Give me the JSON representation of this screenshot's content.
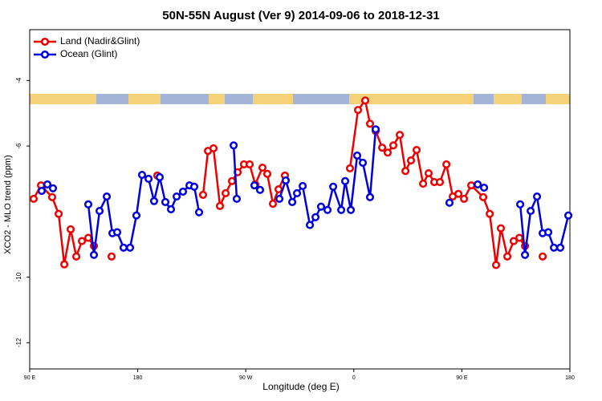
{
  "chart_data": {
    "type": "line",
    "title": "50N-55N August (Ver 9)   2014-09-06 to 2018-12-31",
    "x_label": "Longitude (deg E)",
    "y_label": "XCO2 - MLO trend (ppm)",
    "xlim": [
      90,
      540
    ],
    "xticks": [
      {
        "value": 90,
        "label": "90 E"
      },
      {
        "value": 180,
        "label": "180"
      },
      {
        "value": 270,
        "label": "90 W"
      },
      {
        "value": 360,
        "label": "0"
      },
      {
        "value": 450,
        "label": "90 E"
      },
      {
        "value": 540,
        "label": "180"
      }
    ],
    "ylim": [
      -12.8,
      -2.45
    ],
    "yticks": [
      -4,
      -6,
      -10,
      -12
    ],
    "legend": "upper left",
    "series": [
      {
        "name": "Land (Nadir&Glint)",
        "color": "#ee0000",
        "x": [
          93.3,
          99.4,
          108.7,
          114.1,
          118.8,
          124.1,
          128.8,
          133.5,
          138.8,
          143.5,
          150.9,
          158.2,
          177.6,
          196.3,
          215.7,
          234.4,
          238.5,
          243.1,
          248.5,
          253.2,
          258.5,
          263.2,
          268.5,
          273.2,
          277.9,
          283.9,
          287.9,
          292.6,
          297.3,
          302.6,
          329.4,
          356.8,
          363.5,
          369.5,
          373.5,
          378.2,
          383.6,
          388.2,
          392.9,
          398.3,
          403.0,
          407.6,
          412.3,
          417.7,
          422.3,
          427.0,
          431.7,
          437.1,
          442.4,
          447.1,
          451.8,
          457.8,
          467.8,
          473.2,
          478.5,
          482.5,
          487.9,
          493.2,
          497.9,
          502.6,
          509.9,
          517.3
        ],
        "values": [
          -7.61,
          -7.2,
          -7.56,
          -8.07,
          -9.61,
          -8.54,
          -9.37,
          -8.9,
          -8.8,
          -9.05,
          null,
          -9.37,
          null,
          -6.9,
          null,
          -7.49,
          -6.15,
          -6.07,
          -7.83,
          -7.44,
          -7.07,
          -6.8,
          -6.56,
          -6.56,
          -7.17,
          -6.66,
          -6.85,
          -7.76,
          -7.32,
          -6.9,
          null,
          -6.68,
          -4.9,
          -4.61,
          -5.32,
          -5.54,
          -6.05,
          -6.2,
          -5.98,
          -5.66,
          -6.76,
          -6.44,
          -6.12,
          -7.15,
          -6.83,
          -7.1,
          -7.1,
          -6.56,
          -7.54,
          -7.46,
          -7.61,
          -7.2,
          -7.56,
          -8.07,
          -9.63,
          -8.51,
          -9.37,
          -8.9,
          -8.8,
          -9.05,
          null,
          -9.37
        ]
      },
      {
        "name": "Ocean (Glint)",
        "color": "#0000dd",
        "x": [
          100.0,
          104.7,
          109.4,
          124.1,
          138.8,
          143.5,
          148.2,
          154.2,
          158.9,
          162.9,
          168.2,
          173.6,
          178.9,
          183.6,
          189.0,
          193.6,
          198.3,
          203.0,
          207.7,
          212.4,
          217.7,
          223.1,
          227.1,
          231.1,
          245.8,
          259.9,
          262.5,
          269.9,
          277.2,
          281.9,
          289.9,
          298.0,
          303.3,
          308.7,
          312.7,
          317.4,
          323.4,
          328.1,
          332.7,
          338.1,
          342.8,
          349.5,
          352.8,
          357.5,
          362.8,
          367.5,
          373.5,
          378.2,
          406.3,
          439.7,
          453.1,
          463.2,
          468.5,
          483.2,
          498.6,
          502.6,
          507.3,
          512.6,
          517.3,
          522.0,
          526.7,
          532.0,
          538.7
        ],
        "values": [
          -7.37,
          -7.17,
          -7.29,
          null,
          -7.78,
          -9.32,
          -7.98,
          -7.54,
          -8.66,
          -8.63,
          -9.1,
          -9.1,
          -8.12,
          -6.88,
          -7.0,
          -7.68,
          -6.95,
          -7.71,
          -7.93,
          -7.54,
          -7.39,
          -7.2,
          -7.24,
          -8.02,
          null,
          -5.98,
          -7.61,
          null,
          -7.2,
          -7.34,
          null,
          -7.61,
          -7.05,
          -7.71,
          -7.44,
          -7.22,
          -8.41,
          -8.17,
          -7.85,
          -7.95,
          -7.24,
          -7.95,
          -7.07,
          -7.95,
          -6.29,
          -6.51,
          -7.56,
          -5.49,
          null,
          -7.73,
          null,
          -7.17,
          -7.27,
          null,
          -7.78,
          -9.32,
          -7.98,
          -7.54,
          -8.66,
          -8.63,
          -9.1,
          -9.1,
          -8.12
        ]
      }
    ]
  }
}
